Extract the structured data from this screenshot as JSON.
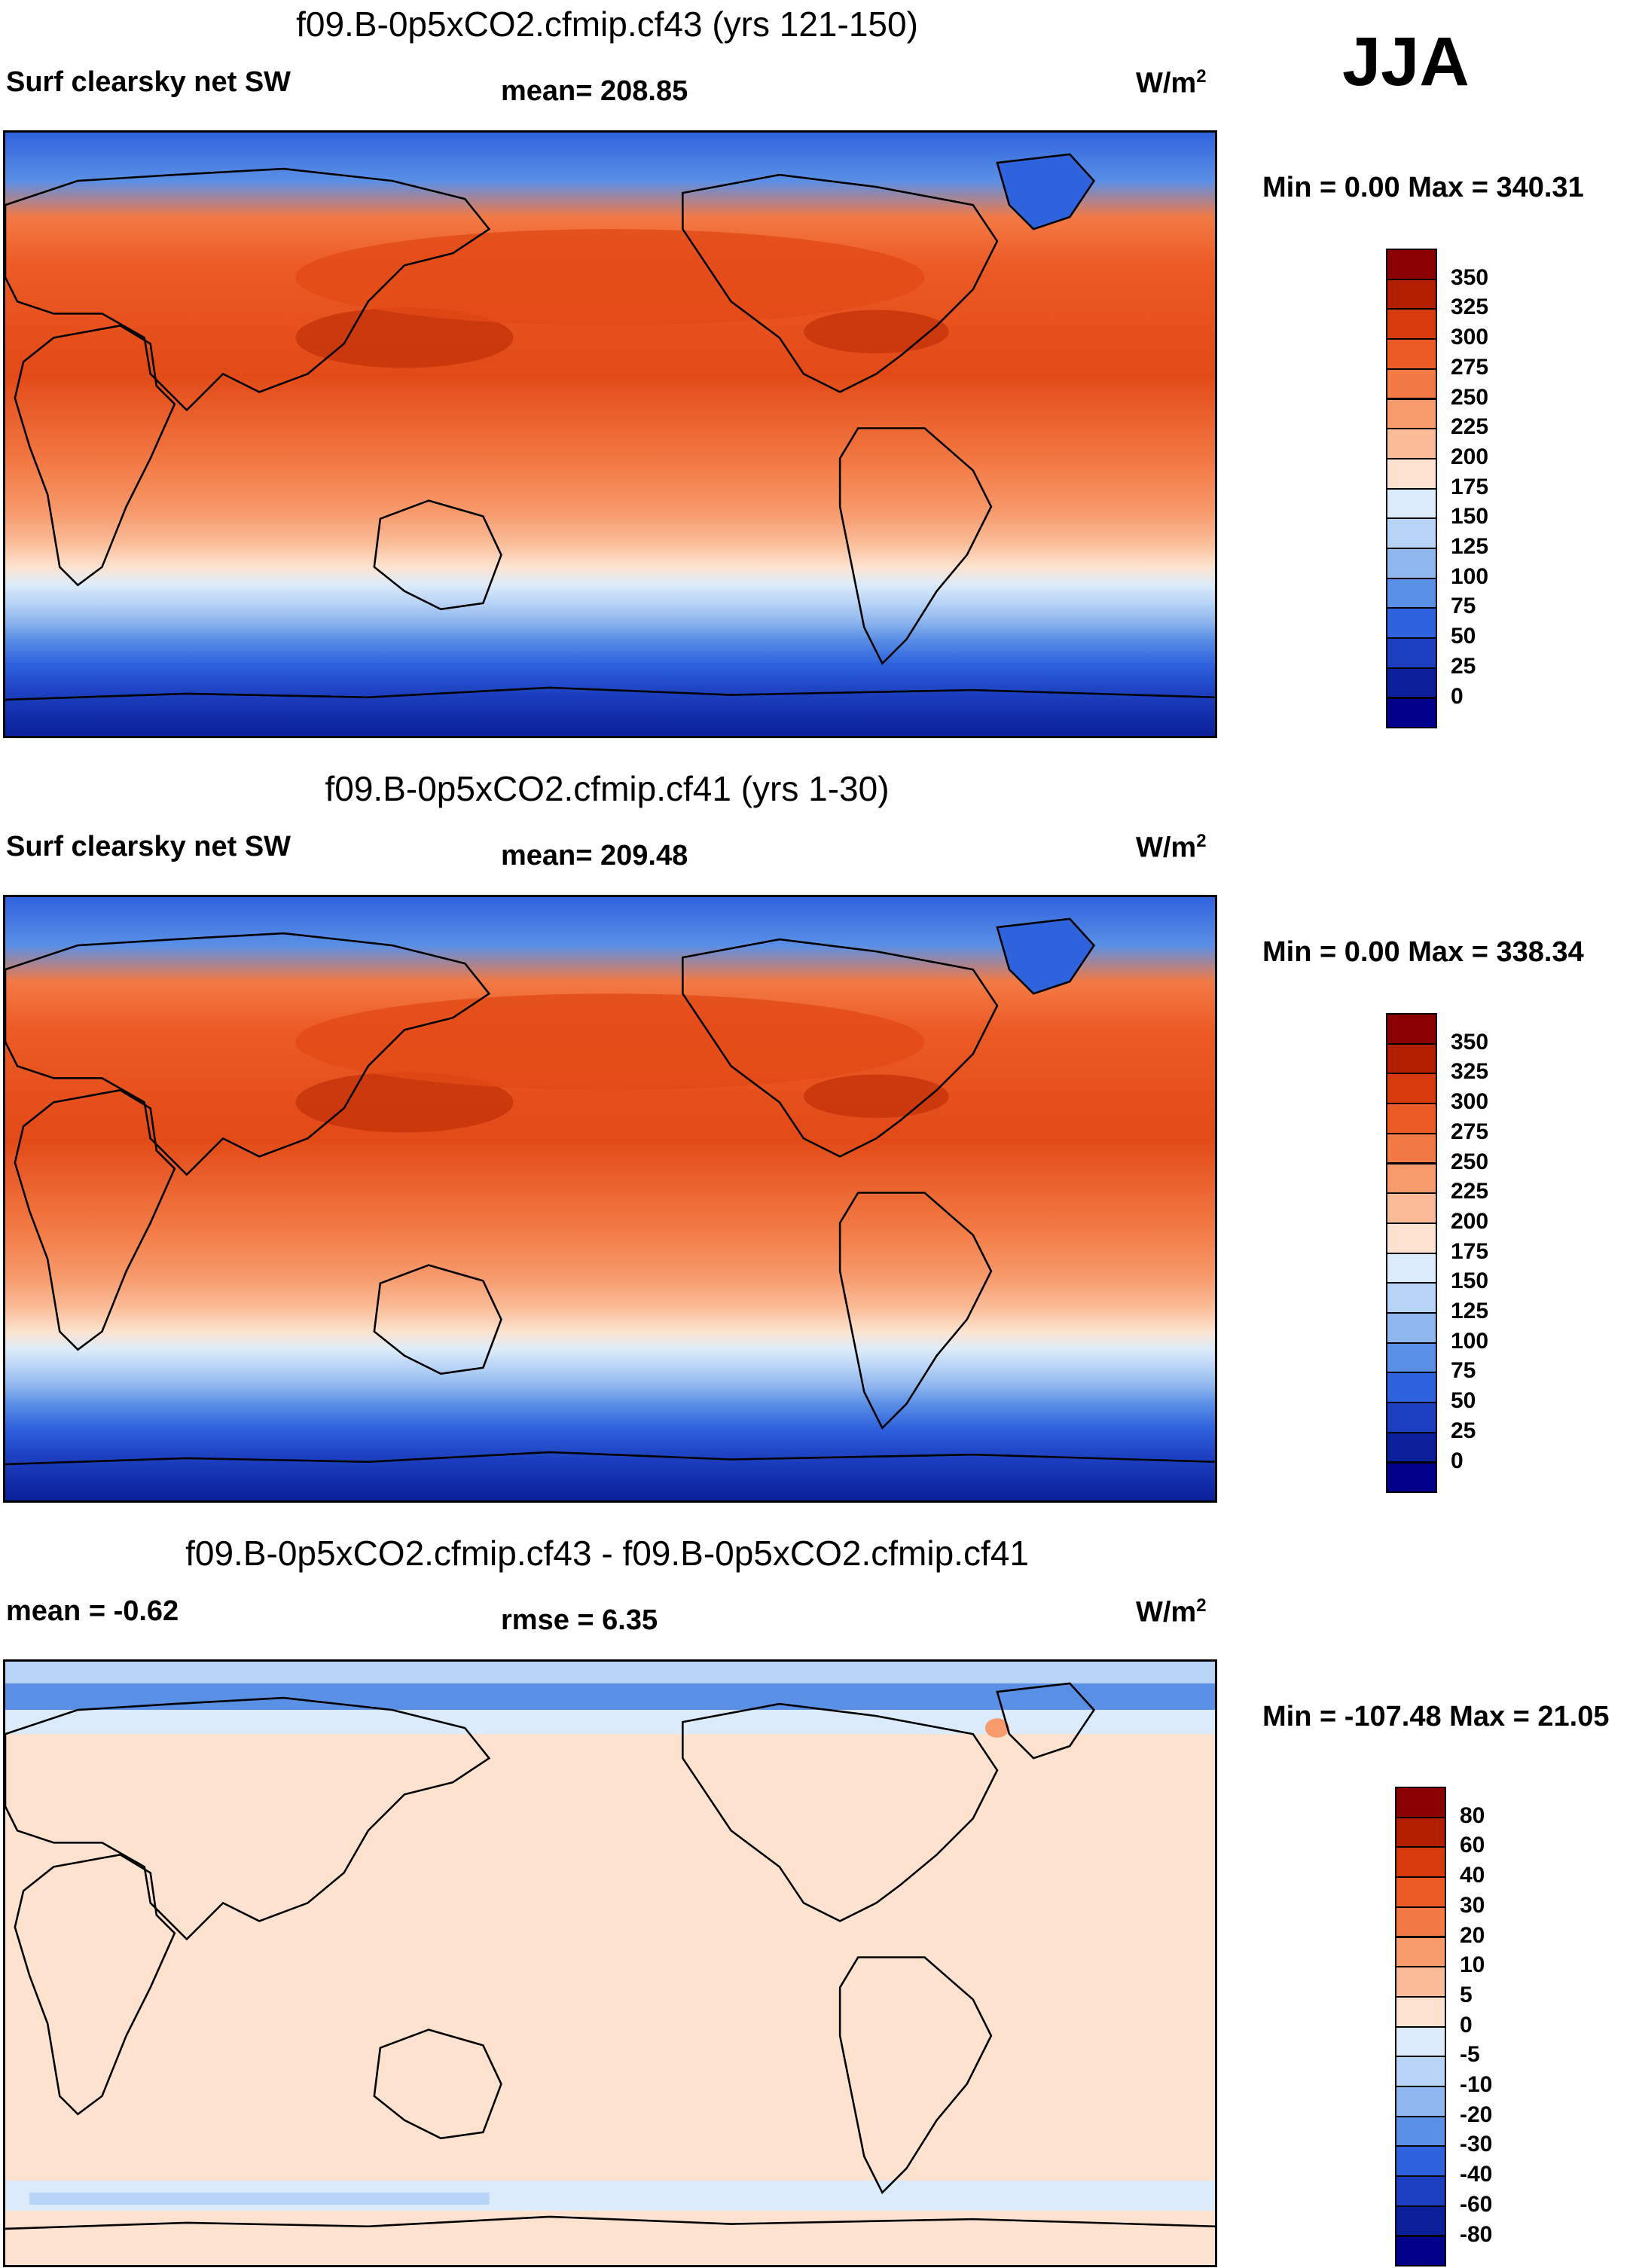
{
  "season": "JJA",
  "panels": [
    {
      "title": "f09.B-0p5xCO2.cfmip.cf43 (yrs 121-150)",
      "left_label": "Surf clearsky net SW",
      "center_label": "mean= 208.85",
      "units": "W/m",
      "units_sup": "2",
      "minmax": "Min =   0.00 Max = 340.31",
      "colorbar": {
        "labels": [
          "350",
          "325",
          "300",
          "275",
          "250",
          "225",
          "200",
          "175",
          "150",
          "125",
          "100",
          "75",
          "50",
          "25",
          "0"
        ],
        "colors": [
          "#8b0000",
          "#b21e00",
          "#d63a0c",
          "#ec5a25",
          "#f37a45",
          "#f79a6c",
          "#fabc98",
          "#fde3cf",
          "#dcebfb",
          "#b7d3f6",
          "#8fb6ee",
          "#5a8fe6",
          "#2f63dd",
          "#1c3fc0",
          "#0a1f99",
          "#00008b"
        ]
      },
      "chart_data": {
        "type": "heatmap",
        "title": "f09.B-0p5xCO2.cfmip.cf43 (yrs 121-150)",
        "variable": "Surf clearsky net SW",
        "mean": 208.85,
        "min": 0.0,
        "max": 340.31,
        "units": "W/m2",
        "levels": [
          0,
          25,
          50,
          75,
          100,
          125,
          150,
          175,
          200,
          225,
          250,
          275,
          300,
          325,
          350
        ]
      }
    },
    {
      "title": "f09.B-0p5xCO2.cfmip.cf41 (yrs 1-30)",
      "left_label": "Surf clearsky net SW",
      "center_label": "mean= 209.48",
      "units": "W/m",
      "units_sup": "2",
      "minmax": "Min =   0.00 Max = 338.34",
      "colorbar": {
        "labels": [
          "350",
          "325",
          "300",
          "275",
          "250",
          "225",
          "200",
          "175",
          "150",
          "125",
          "100",
          "75",
          "50",
          "25",
          "0"
        ],
        "colors": [
          "#8b0000",
          "#b21e00",
          "#d63a0c",
          "#ec5a25",
          "#f37a45",
          "#f79a6c",
          "#fabc98",
          "#fde3cf",
          "#dcebfb",
          "#b7d3f6",
          "#8fb6ee",
          "#5a8fe6",
          "#2f63dd",
          "#1c3fc0",
          "#0a1f99",
          "#00008b"
        ]
      },
      "chart_data": {
        "type": "heatmap",
        "title": "f09.B-0p5xCO2.cfmip.cf41 (yrs 1-30)",
        "variable": "Surf clearsky net SW",
        "mean": 209.48,
        "min": 0.0,
        "max": 338.34,
        "units": "W/m2",
        "levels": [
          0,
          25,
          50,
          75,
          100,
          125,
          150,
          175,
          200,
          225,
          250,
          275,
          300,
          325,
          350
        ]
      }
    },
    {
      "title": "f09.B-0p5xCO2.cfmip.cf43 - f09.B-0p5xCO2.cfmip.cf41",
      "left_label": "mean =  -0.62",
      "center_label": "rmse =   6.35",
      "units": "W/m",
      "units_sup": "2",
      "minmax": "Min = -107.48 Max =  21.05",
      "colorbar": {
        "labels": [
          "80",
          "60",
          "40",
          "30",
          "20",
          "10",
          "5",
          "0",
          "-5",
          "-10",
          "-20",
          "-30",
          "-40",
          "-60",
          "-80"
        ],
        "colors": [
          "#8b0000",
          "#b21e00",
          "#d63a0c",
          "#ec5a25",
          "#f37a45",
          "#f79a6c",
          "#fabc98",
          "#fde3cf",
          "#dcebfb",
          "#b7d3f6",
          "#8fb6ee",
          "#5a8fe6",
          "#2f63dd",
          "#1c3fc0",
          "#0a1f99",
          "#00008b"
        ]
      },
      "chart_data": {
        "type": "heatmap",
        "title": "f09.B-0p5xCO2.cfmip.cf43 - f09.B-0p5xCO2.cfmip.cf41",
        "mean": -0.62,
        "rmse": 6.35,
        "min": -107.48,
        "max": 21.05,
        "units": "W/m2",
        "levels": [
          -80,
          -60,
          -40,
          -30,
          -20,
          -10,
          -5,
          0,
          5,
          10,
          20,
          30,
          40,
          60,
          80
        ]
      }
    }
  ]
}
